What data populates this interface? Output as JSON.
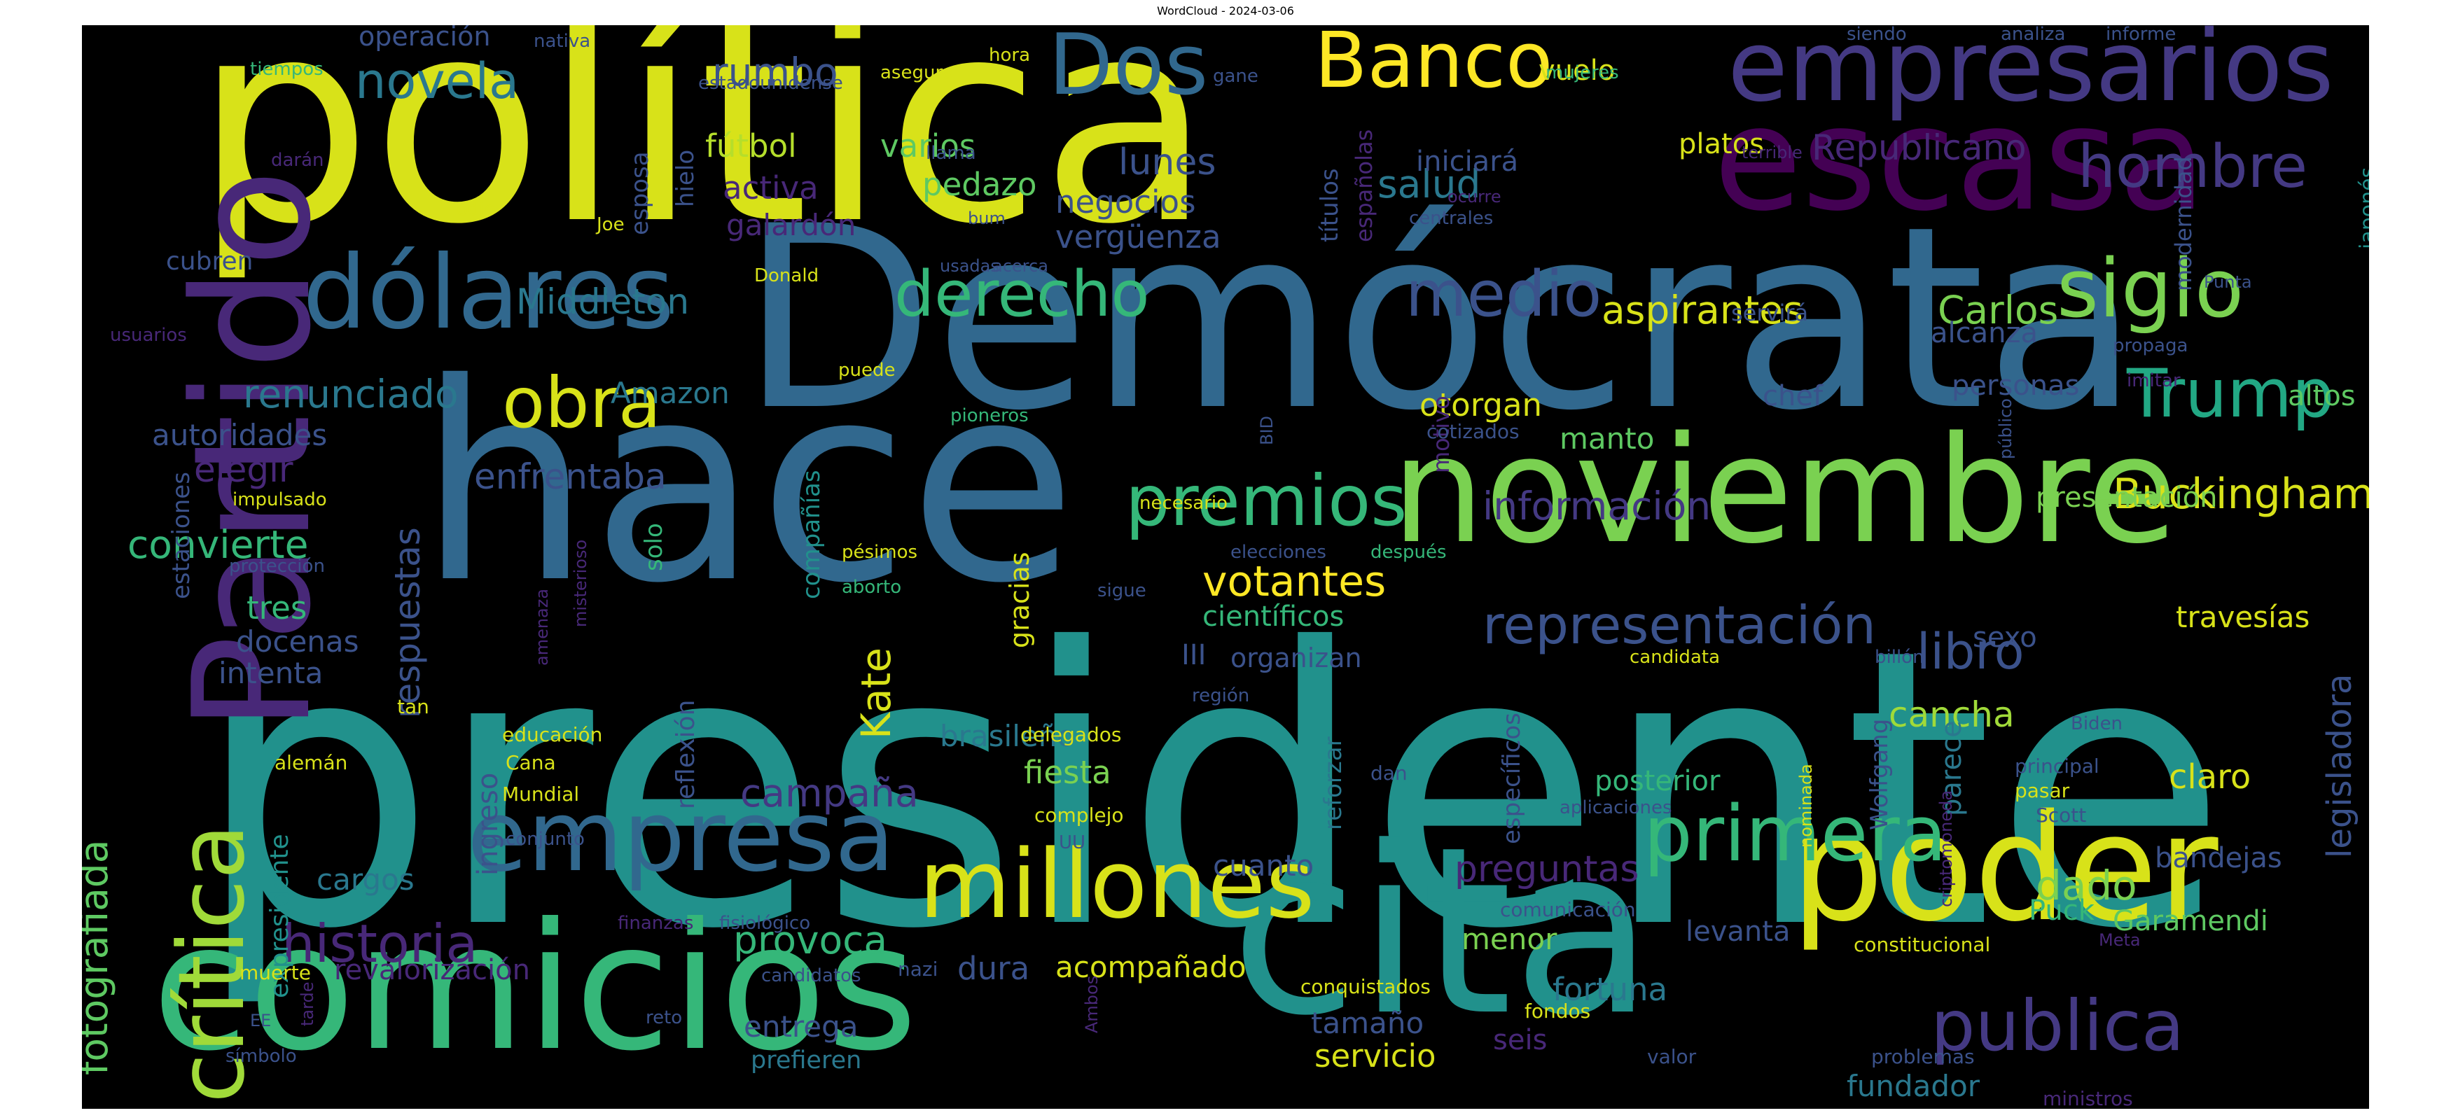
{
  "chart_data": {
    "type": "wordcloud",
    "title": "WordCloud - 2024-03-06",
    "background": "#000000",
    "words": [
      {
        "text": "presidente",
        "weight": 100,
        "color": "#21918c"
      },
      {
        "text": "política",
        "weight": 93,
        "color": "#d8e219"
      },
      {
        "text": "hace",
        "weight": 90,
        "color": "#31688e"
      },
      {
        "text": "Demócrata",
        "weight": 86,
        "color": "#31688e"
      },
      {
        "text": "comicios",
        "weight": 62,
        "color": "#35b779"
      },
      {
        "text": "cita",
        "weight": 64,
        "color": "#21918c"
      },
      {
        "text": "Partido",
        "weight": 60,
        "color": "#482878"
      },
      {
        "text": "noviembre",
        "weight": 56,
        "color": "#7ad151"
      },
      {
        "text": "escasa",
        "weight": 54,
        "color": "#440154"
      },
      {
        "text": "poder",
        "weight": 52,
        "color": "#d8e219"
      },
      {
        "text": "empresarios",
        "weight": 36,
        "color": "#443983"
      },
      {
        "text": "dólares",
        "weight": 36,
        "color": "#31688e"
      },
      {
        "text": "empresa",
        "weight": 35,
        "color": "#31688e"
      },
      {
        "text": "millones",
        "weight": 34,
        "color": "#d8e219"
      },
      {
        "text": "crítica",
        "weight": 33,
        "color": "#a0da39"
      },
      {
        "text": "Dos",
        "weight": 30,
        "color": "#31688e"
      },
      {
        "text": "Banco",
        "weight": 28,
        "color": "#fde725"
      },
      {
        "text": "siglo",
        "weight": 28,
        "color": "#7ad151"
      },
      {
        "text": "primera",
        "weight": 28,
        "color": "#35b779"
      },
      {
        "text": "publica",
        "weight": 27,
        "color": "#443983"
      },
      {
        "text": "premios",
        "weight": 26,
        "color": "#35b779"
      },
      {
        "text": "obra",
        "weight": 26,
        "color": "#d8e219"
      },
      {
        "text": "Trump",
        "weight": 25,
        "color": "#22a884"
      },
      {
        "text": "derecho",
        "weight": 24,
        "color": "#35b779"
      },
      {
        "text": "medio",
        "weight": 24,
        "color": "#3b528b"
      },
      {
        "text": "hombre",
        "weight": 22,
        "color": "#443983"
      },
      {
        "text": "historia",
        "weight": 22,
        "color": "#482878"
      },
      {
        "text": "representación",
        "weight": 21,
        "color": "#3b528b"
      },
      {
        "text": "libro",
        "weight": 18,
        "color": "#3b528b"
      },
      {
        "text": "novela",
        "weight": 17,
        "color": "#2a788e"
      },
      {
        "text": "votantes",
        "weight": 17,
        "color": "#fde725"
      },
      {
        "text": "Buckingham",
        "weight": 17,
        "color": "#d8e219"
      },
      {
        "text": "renunciado",
        "weight": 16,
        "color": "#2a788e"
      },
      {
        "text": "información",
        "weight": 16,
        "color": "#443983"
      },
      {
        "text": "dado",
        "weight": 16,
        "color": "#7ad151"
      },
      {
        "text": "aspirantes",
        "weight": 16,
        "color": "#d8e219"
      },
      {
        "text": "Carlos",
        "weight": 16,
        "color": "#7ad151"
      },
      {
        "text": "campaña",
        "weight": 16,
        "color": "#443983"
      },
      {
        "text": "Kate",
        "weight": 16,
        "color": "#d8e219"
      },
      {
        "text": "Middleton",
        "weight": 15,
        "color": "#2a788e"
      },
      {
        "text": "enfrentaba",
        "weight": 15,
        "color": "#3b528b"
      },
      {
        "text": "respuestas",
        "weight": 15,
        "color": "#3b528b"
      },
      {
        "text": "fotografiada",
        "weight": 15,
        "color": "#5ec962"
      },
      {
        "text": "convierte",
        "weight": 15,
        "color": "#35b779"
      },
      {
        "text": "provoca",
        "weight": 15,
        "color": "#35b779"
      },
      {
        "text": "rumbo",
        "weight": 15,
        "color": "#3b528b"
      },
      {
        "text": "salud",
        "weight": 15,
        "color": "#2a788e"
      },
      {
        "text": "cancha",
        "weight": 14,
        "color": "#a0da39"
      },
      {
        "text": "legisladora",
        "weight": 14,
        "color": "#3b528b"
      },
      {
        "text": "preguntas",
        "weight": 14,
        "color": "#482878"
      },
      {
        "text": "Republicano",
        "weight": 14,
        "color": "#482878"
      },
      {
        "text": "lunes",
        "weight": 14,
        "color": "#3b528b"
      },
      {
        "text": "pedazo",
        "weight": 13,
        "color": "#5ec962"
      },
      {
        "text": "otorgan",
        "weight": 13,
        "color": "#d8e219"
      },
      {
        "text": "fútbol",
        "weight": 13,
        "color": "#b5de2b"
      },
      {
        "text": "varios",
        "weight": 13,
        "color": "#5ec962"
      },
      {
        "text": "negocios",
        "weight": 13,
        "color": "#3b528b"
      },
      {
        "text": "vergüenza",
        "weight": 13,
        "color": "#3b528b"
      },
      {
        "text": "activa",
        "weight": 13,
        "color": "#482878"
      },
      {
        "text": "galardón",
        "weight": 12,
        "color": "#482878"
      },
      {
        "text": "autoridades",
        "weight": 12,
        "color": "#3b528b"
      },
      {
        "text": "elegir",
        "weight": 12,
        "color": "#482878"
      },
      {
        "text": "Amazon",
        "weight": 12,
        "color": "#2a788e"
      },
      {
        "text": "tres",
        "weight": 12,
        "color": "#35b779"
      },
      {
        "text": "docenas",
        "weight": 12,
        "color": "#3b528b"
      },
      {
        "text": "intenta",
        "weight": 12,
        "color": "#3b528b"
      },
      {
        "text": "brasileño",
        "weight": 12,
        "color": "#2a788e"
      },
      {
        "text": "fiesta",
        "weight": 12,
        "color": "#7ad151"
      },
      {
        "text": "cargos",
        "weight": 12,
        "color": "#2a788e"
      },
      {
        "text": "revalorización",
        "weight": 11,
        "color": "#482878"
      },
      {
        "text": "entrega",
        "weight": 12,
        "color": "#3b528b"
      },
      {
        "text": "prefieren",
        "weight": 10,
        "color": "#2a788e"
      },
      {
        "text": "tamaño",
        "weight": 12,
        "color": "#3b528b"
      },
      {
        "text": "servicio",
        "weight": 12,
        "color": "#d8e219"
      },
      {
        "text": "fortuna",
        "weight": 12,
        "color": "#2a788e"
      },
      {
        "text": "seis",
        "weight": 12,
        "color": "#482878"
      },
      {
        "text": "menor",
        "weight": 12,
        "color": "#7ad151"
      },
      {
        "text": "dura",
        "weight": 12,
        "color": "#3b528b"
      },
      {
        "text": "acompañado",
        "weight": 12,
        "color": "#d8e219"
      },
      {
        "text": "cuanto",
        "weight": 12,
        "color": "#3b528b"
      },
      {
        "text": "fundador",
        "weight": 12,
        "color": "#2a788e"
      },
      {
        "text": "levanta",
        "weight": 11,
        "color": "#3b528b"
      },
      {
        "text": "Puck",
        "weight": 11,
        "color": "#35b779"
      },
      {
        "text": "Garamendi",
        "weight": 11,
        "color": "#5ec962"
      },
      {
        "text": "bandejas",
        "weight": 11,
        "color": "#3b528b"
      },
      {
        "text": "claro",
        "weight": 12,
        "color": "#d8e219"
      },
      {
        "text": "parece",
        "weight": 11,
        "color": "#2a788e"
      },
      {
        "text": "posterior",
        "weight": 11,
        "color": "#35b779"
      },
      {
        "text": "sexo",
        "weight": 11,
        "color": "#3b528b"
      },
      {
        "text": "travesías",
        "weight": 11,
        "color": "#d8e219"
      },
      {
        "text": "presentación",
        "weight": 11,
        "color": "#7ad151"
      },
      {
        "text": "altos",
        "weight": 11,
        "color": "#5ec962"
      },
      {
        "text": "personas",
        "weight": 11,
        "color": "#3b528b"
      },
      {
        "text": "chef",
        "weight": 11,
        "color": "#3b528b"
      },
      {
        "text": "manto",
        "weight": 11,
        "color": "#5ec962"
      },
      {
        "text": "alcanza",
        "weight": 11,
        "color": "#3b528b"
      },
      {
        "text": "iniciará",
        "weight": 11,
        "color": "#3b528b"
      },
      {
        "text": "platos",
        "weight": 11,
        "color": "#d8e219"
      },
      {
        "text": "vuelo",
        "weight": 11,
        "color": "#d8e219"
      },
      {
        "text": "científicos",
        "weight": 11,
        "color": "#35b779"
      },
      {
        "text": "III",
        "weight": 11,
        "color": "#3b528b"
      },
      {
        "text": "organizan",
        "weight": 10,
        "color": "#3b528b"
      },
      {
        "text": "ingreso",
        "weight": 11,
        "color": "#3b528b"
      },
      {
        "text": "expresidente",
        "weight": 10,
        "color": "#21918c"
      },
      {
        "text": "reflexión",
        "weight": 10,
        "color": "#3b528b"
      },
      {
        "text": "gracias",
        "weight": 11,
        "color": "#d8e219"
      },
      {
        "text": "compañías",
        "weight": 10,
        "color": "#21918c"
      },
      {
        "text": "reforzar",
        "weight": 10,
        "color": "#2a788e"
      },
      {
        "text": "específicos",
        "weight": 10,
        "color": "#3b528b"
      },
      {
        "text": "Wolfgang",
        "weight": 10,
        "color": "#3b528b"
      },
      {
        "text": "estaciones",
        "weight": 10,
        "color": "#3b528b"
      },
      {
        "text": "operación",
        "weight": 10,
        "color": "#3b528b"
      },
      {
        "text": "cubren",
        "weight": 10,
        "color": "#3b528b"
      },
      {
        "text": "esposa",
        "weight": 10,
        "color": "#3b528b"
      },
      {
        "text": "hielo",
        "weight": 10,
        "color": "#3b528b"
      },
      {
        "text": "títulos",
        "weight": 10,
        "color": "#3b528b"
      },
      {
        "text": "españolas",
        "weight": 9,
        "color": "#482878"
      },
      {
        "text": "modernidad",
        "weight": 9,
        "color": "#3b528b"
      },
      {
        "text": "japonés",
        "weight": 9,
        "color": "#21918c"
      },
      {
        "text": "motivo",
        "weight": 9,
        "color": "#482878"
      },
      {
        "text": "solo",
        "weight": 10,
        "color": "#35b779"
      },
      {
        "text": "nativa",
        "weight": 7,
        "color": "#3b528b"
      },
      {
        "text": "tiempos",
        "weight": 7,
        "color": "#35b779"
      },
      {
        "text": "estadounidense",
        "weight": 7,
        "color": "#3b528b"
      },
      {
        "text": "asegura",
        "weight": 7,
        "color": "#d8e219"
      },
      {
        "text": "hora",
        "weight": 7,
        "color": "#d8e219"
      },
      {
        "text": "gane",
        "weight": 7,
        "color": "#3b528b"
      },
      {
        "text": "mujeres",
        "weight": 7,
        "color": "#35b779"
      },
      {
        "text": "siendo",
        "weight": 7,
        "color": "#3b528b"
      },
      {
        "text": "analiza",
        "weight": 7,
        "color": "#3b528b"
      },
      {
        "text": "informe",
        "weight": 7,
        "color": "#3b528b"
      },
      {
        "text": "darán",
        "weight": 7,
        "color": "#482878"
      },
      {
        "text": "llama",
        "weight": 7,
        "color": "#3b528b"
      },
      {
        "text": "odio",
        "weight": 7,
        "color": "#d8e219"
      },
      {
        "text": "Joe",
        "weight": 7,
        "color": "#d8e219"
      },
      {
        "text": "bum",
        "weight": 6,
        "color": "#3b528b"
      },
      {
        "text": "ocurre",
        "weight": 6,
        "color": "#482878"
      },
      {
        "text": "centrales",
        "weight": 7,
        "color": "#3b528b"
      },
      {
        "text": "terrible",
        "weight": 6,
        "color": "#482878"
      },
      {
        "text": "usadas",
        "weight": 7,
        "color": "#3b528b"
      },
      {
        "text": "acerca",
        "weight": 7,
        "color": "#3b528b"
      },
      {
        "text": "Donald",
        "weight": 7,
        "color": "#d8e219"
      },
      {
        "text": "usuarios",
        "weight": 7,
        "color": "#482878"
      },
      {
        "text": "servirá",
        "weight": 8,
        "color": "#3b528b"
      },
      {
        "text": "Punta",
        "weight": 6,
        "color": "#3b528b"
      },
      {
        "text": "propaga",
        "weight": 7,
        "color": "#3b528b"
      },
      {
        "text": "imitar",
        "weight": 7,
        "color": "#482878"
      },
      {
        "text": "puede",
        "weight": 7,
        "color": "#d8e219"
      },
      {
        "text": "pioneros",
        "weight": 7,
        "color": "#35b779"
      },
      {
        "text": "BID",
        "weight": 6,
        "color": "#3b528b"
      },
      {
        "text": "público",
        "weight": 6,
        "color": "#3b528b"
      },
      {
        "text": "cotizados",
        "weight": 7,
        "color": "#3b528b"
      },
      {
        "text": "impulsado",
        "weight": 7,
        "color": "#d8e219"
      },
      {
        "text": "necesario",
        "weight": 7,
        "color": "#d8e219"
      },
      {
        "text": "protección",
        "weight": 7,
        "color": "#3b528b"
      },
      {
        "text": "pésimos",
        "weight": 7,
        "color": "#d8e219"
      },
      {
        "text": "aborto",
        "weight": 7,
        "color": "#35b779"
      },
      {
        "text": "elecciones",
        "weight": 7,
        "color": "#3b528b"
      },
      {
        "text": "después",
        "weight": 7,
        "color": "#35b779"
      },
      {
        "text": "sigue",
        "weight": 7,
        "color": "#3b528b"
      },
      {
        "text": "misterioso",
        "weight": 6,
        "color": "#482878"
      },
      {
        "text": "amenaza",
        "weight": 6,
        "color": "#482878"
      },
      {
        "text": "candidata",
        "weight": 7,
        "color": "#d8e219"
      },
      {
        "text": "billón",
        "weight": 7,
        "color": "#3b528b"
      },
      {
        "text": "región",
        "weight": 7,
        "color": "#3b528b"
      },
      {
        "text": "tan",
        "weight": 7,
        "color": "#d8e219"
      },
      {
        "text": "educación",
        "weight": 7,
        "color": "#d8e219"
      },
      {
        "text": "alemán",
        "weight": 7,
        "color": "#d8e219"
      },
      {
        "text": "Cana",
        "weight": 7,
        "color": "#d8e219"
      },
      {
        "text": "Mundial",
        "weight": 7,
        "color": "#d8e219"
      },
      {
        "text": "delegados",
        "weight": 7,
        "color": "#d8e219"
      },
      {
        "text": "Biden",
        "weight": 7,
        "color": "#3b528b"
      },
      {
        "text": "principal",
        "weight": 7,
        "color": "#3b528b"
      },
      {
        "text": "pasar",
        "weight": 7,
        "color": "#d8e219"
      },
      {
        "text": "Scott",
        "weight": 7,
        "color": "#3b528b"
      },
      {
        "text": "criptomoneda",
        "weight": 6,
        "color": "#482878"
      },
      {
        "text": "nominada",
        "weight": 6,
        "color": "#d8e219"
      },
      {
        "text": "dan",
        "weight": 7,
        "color": "#3b528b"
      },
      {
        "text": "aplicaciones",
        "weight": 7,
        "color": "#3b528b"
      },
      {
        "text": "complejo",
        "weight": 7,
        "color": "#d8e219"
      },
      {
        "text": "conjunto",
        "weight": 7,
        "color": "#3b528b"
      },
      {
        "text": "UU",
        "weight": 6,
        "color": "#3b528b"
      },
      {
        "text": "comunicación",
        "weight": 7,
        "color": "#3b528b"
      },
      {
        "text": "constitucional",
        "weight": 7,
        "color": "#d8e219"
      },
      {
        "text": "Meta",
        "weight": 6,
        "color": "#482878"
      },
      {
        "text": "finanzas",
        "weight": 7,
        "color": "#482878"
      },
      {
        "text": "fisiológico",
        "weight": 7,
        "color": "#3b528b"
      },
      {
        "text": "muerte",
        "weight": 7,
        "color": "#d8e219"
      },
      {
        "text": "candidatos",
        "weight": 7,
        "color": "#3b528b"
      },
      {
        "text": "nazi",
        "weight": 7,
        "color": "#3b528b"
      },
      {
        "text": "tarde",
        "weight": 6,
        "color": "#482878"
      },
      {
        "text": "EE",
        "weight": 6,
        "color": "#3b528b"
      },
      {
        "text": "reto",
        "weight": 7,
        "color": "#3b528b"
      },
      {
        "text": "símbolo",
        "weight": 7,
        "color": "#3b528b"
      },
      {
        "text": "Ambos",
        "weight": 6,
        "color": "#482878"
      },
      {
        "text": "conquistados",
        "weight": 7,
        "color": "#d8e219"
      },
      {
        "text": "fondos",
        "weight": 7,
        "color": "#d8e219"
      },
      {
        "text": "valor",
        "weight": 7,
        "color": "#3b528b"
      },
      {
        "text": "problemas",
        "weight": 7,
        "color": "#3b528b"
      },
      {
        "text": "ministros",
        "weight": 7,
        "color": "#482878"
      }
    ]
  }
}
